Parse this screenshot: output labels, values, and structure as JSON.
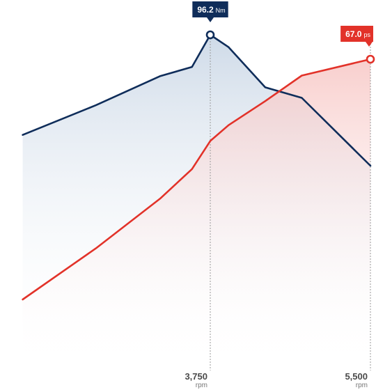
{
  "chart_data": {
    "type": "line",
    "x_unit": "rpm",
    "x_ticks": [
      {
        "value": 3750,
        "label": "3,750"
      },
      {
        "value": 5500,
        "label": "5,500"
      }
    ],
    "series": [
      {
        "key": "torque",
        "unit": "Nm",
        "color": "#0f2d5a",
        "fill_color": "#c6d4e4",
        "x": [
          1700,
          2500,
          3200,
          3550,
          3750,
          3950,
          4350,
          4750,
          5500
        ],
        "values": [
          80.0,
          84.8,
          89.5,
          91.0,
          96.2,
          94.2,
          87.7,
          86.0,
          75.0
        ],
        "peak": {
          "x": 3750,
          "label": "96.2",
          "unit": "Nm"
        }
      },
      {
        "key": "power",
        "unit": "ps",
        "color": "#e23229",
        "fill_color": "#f7c6c4",
        "x": [
          1700,
          2500,
          3200,
          3550,
          3750,
          3950,
          4350,
          4750,
          5500
        ],
        "values": [
          20.0,
          30.0,
          39.7,
          45.5,
          51.0,
          54.1,
          58.8,
          63.8,
          67.0
        ],
        "peak": {
          "x": 5500,
          "label": "67.0",
          "unit": "ps"
        }
      }
    ],
    "grid": false
  }
}
